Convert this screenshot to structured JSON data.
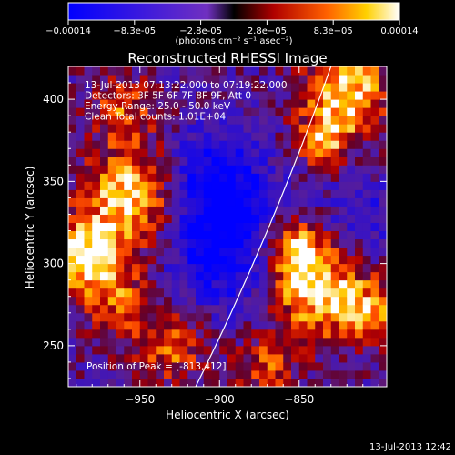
{
  "chart_data": {
    "type": "heatmap",
    "title": "Reconstructed RHESSI Image",
    "xlabel": "Heliocentric X (arcsec)",
    "ylabel": "Heliocentric Y (arcsec)",
    "xlim": [
      -995,
      -795
    ],
    "ylim": [
      225,
      420
    ],
    "x_ticks": [
      -950,
      -900,
      -850
    ],
    "y_ticks": [
      250,
      300,
      350,
      400
    ],
    "colorbar": {
      "range": [
        -0.00014,
        0.00014
      ],
      "tick_labels": [
        "-0.00014",
        "-8.3e-05",
        "-2.8e-05",
        "2.8e-05",
        "8.3e-05",
        "0.00014"
      ],
      "unit_label": "(photons cm⁻² s⁻¹ asec⁻²)"
    },
    "annotations": [
      "13-Jul-2013 07:13:22.000 to 07:19:22.000",
      "Detectors: 3F 5F 6F 7F 8F 9F, Att 0",
      "Energy Range: 25.0 - 50.0 keV",
      "Clean     Total counts: 1.01E+04"
    ],
    "peak_label": "Position of Peak = [-813,412]",
    "footer": "13-Jul-2013 12:42",
    "limb_curve": {
      "points": [
        [
          -915,
          225
        ],
        [
          -870,
          320
        ],
        [
          -830,
          420
        ]
      ]
    },
    "sources": [
      {
        "x": -955,
        "y": 340,
        "sigma": 22,
        "amp": 1.0
      },
      {
        "x": -985,
        "y": 305,
        "sigma": 14,
        "amp": 1.0
      },
      {
        "x": -965,
        "y": 280,
        "sigma": 16,
        "amp": 0.6
      },
      {
        "x": -820,
        "y": 405,
        "sigma": 18,
        "amp": 1.0
      },
      {
        "x": -835,
        "y": 375,
        "sigma": 12,
        "amp": 0.7
      },
      {
        "x": -840,
        "y": 285,
        "sigma": 20,
        "amp": 1.0
      },
      {
        "x": -855,
        "y": 310,
        "sigma": 14,
        "amp": 0.9
      },
      {
        "x": -805,
        "y": 270,
        "sigma": 14,
        "amp": 0.7
      },
      {
        "x": -930,
        "y": 250,
        "sigma": 16,
        "amp": 0.6
      },
      {
        "x": -960,
        "y": 395,
        "sigma": 14,
        "amp": 0.55
      },
      {
        "x": -870,
        "y": 238,
        "sigma": 14,
        "amp": 0.55
      }
    ],
    "sinks": [
      {
        "x": -895,
        "y": 315,
        "sigma": 28,
        "amp": 0.9
      },
      {
        "x": -905,
        "y": 355,
        "sigma": 20,
        "amp": 0.6
      },
      {
        "x": -810,
        "y": 330,
        "sigma": 16,
        "amp": 0.4
      }
    ]
  }
}
